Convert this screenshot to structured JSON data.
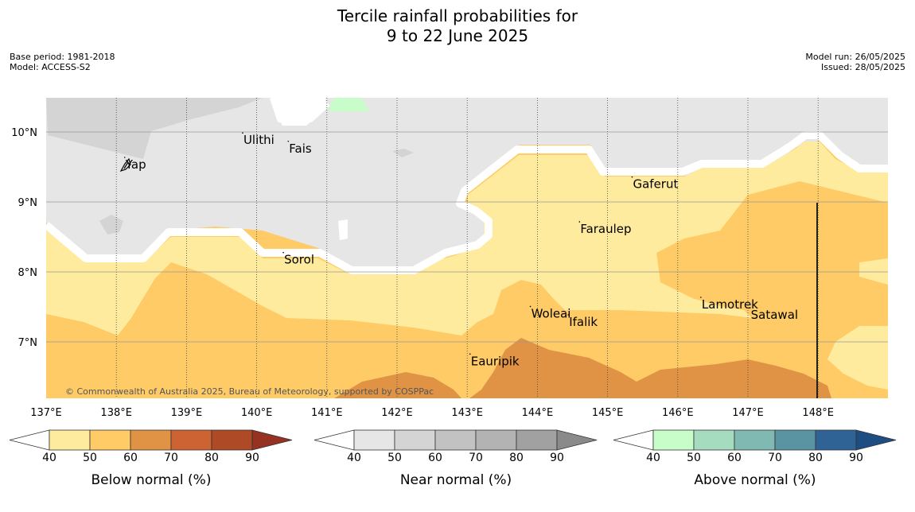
{
  "title_line1": "Tercile rainfall probabilities for",
  "title_line2": "9 to 22 June 2025",
  "base_period": "Base period: 1981-2018",
  "model": "Model: ACCESS-S2",
  "model_run": "Model run: 26/05/2025",
  "issued": "Issued: 28/05/2025",
  "copyright": "© Commonwealth of Australia 2025, Bureau of Meteorology, supported by COSPPac",
  "map": {
    "lon_range": [
      137,
      149
    ],
    "lat_range": [
      6.2,
      10.5
    ],
    "lon_ticks": [
      137,
      138,
      139,
      140,
      141,
      142,
      143,
      144,
      145,
      146,
      147,
      148
    ],
    "lon_tick_labels": [
      "137°E",
      "138°E",
      "139°E",
      "140°E",
      "141°E",
      "142°E",
      "143°E",
      "144°E",
      "145°E",
      "146°E",
      "147°E",
      "148°E"
    ],
    "lat_ticks": [
      10,
      9,
      8,
      7
    ],
    "lat_tick_labels": [
      "10°N",
      "9°N",
      "8°N",
      "7°N"
    ],
    "places": [
      {
        "name": "Ulithi",
        "lon": 139.8,
        "lat": 9.85
      },
      {
        "name": "Fais",
        "lon": 140.45,
        "lat": 9.73
      },
      {
        "name": "Yap",
        "lon": 138.12,
        "lat": 9.5
      },
      {
        "name": "Gaferut",
        "lon": 145.35,
        "lat": 9.22
      },
      {
        "name": "Faraulep",
        "lon": 144.6,
        "lat": 8.58
      },
      {
        "name": "Sorol",
        "lon": 140.38,
        "lat": 8.14
      },
      {
        "name": "Lamotrek",
        "lon": 146.33,
        "lat": 7.5
      },
      {
        "name": "Woleai",
        "lon": 143.9,
        "lat": 7.37
      },
      {
        "name": "Ifalik",
        "lon": 144.44,
        "lat": 7.25
      },
      {
        "name": "Satawal",
        "lon": 147.03,
        "lat": 7.35
      },
      {
        "name": "Eauripik",
        "lon": 143.04,
        "lat": 6.69
      }
    ]
  },
  "colorbars": [
    {
      "label": "Below normal (%)",
      "ticks": [
        "40",
        "50",
        "60",
        "70",
        "80",
        "90"
      ],
      "colors": [
        "#ffffff",
        "#ffeb9e",
        "#fecb66",
        "#e09344",
        "#cd6333",
        "#ae4a25",
        "#963222"
      ]
    },
    {
      "label": "Near normal (%)",
      "ticks": [
        "40",
        "50",
        "60",
        "70",
        "80",
        "90"
      ],
      "colors": [
        "#ffffff",
        "#e6e6e6",
        "#d4d4d4",
        "#c2c2c2",
        "#b3b3b3",
        "#a1a1a1",
        "#8a8a8a"
      ]
    },
    {
      "label": "Above normal (%)",
      "ticks": [
        "40",
        "50",
        "60",
        "70",
        "80",
        "90"
      ],
      "colors": [
        "#ffffff",
        "#c8fcc8",
        "#a5dbbf",
        "#80b9b1",
        "#5a93a1",
        "#2f6395",
        "#1e4d82"
      ]
    }
  ]
}
